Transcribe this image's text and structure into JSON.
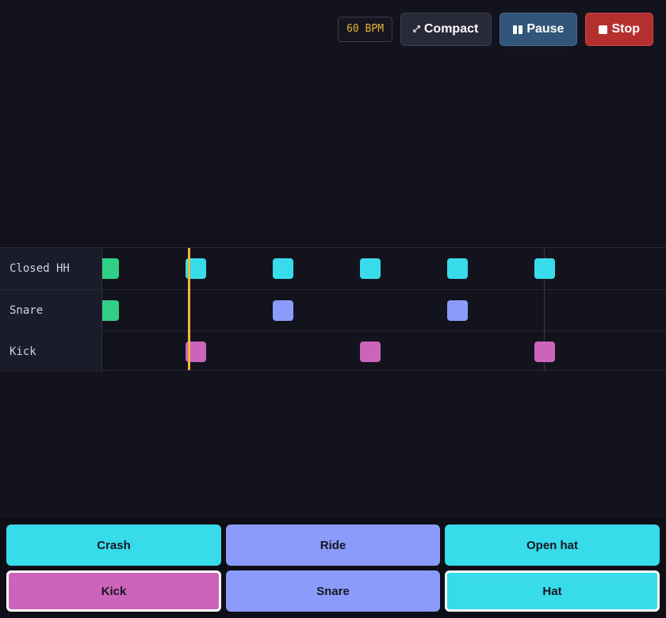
{
  "toolbar": {
    "bpm_label": "60 BPM",
    "compact_label": "Compact",
    "compact_icon": "⤢",
    "pause_label": "Pause",
    "stop_label": "Stop"
  },
  "lanes": [
    {
      "label": "Closed HH",
      "color": "#38dbe9",
      "notes": [
        0,
        1,
        2,
        3,
        4,
        5
      ],
      "first_note_color": "#2fcf85"
    },
    {
      "label": "Snare",
      "color": "#8a9bfb",
      "notes": [
        0,
        2,
        4
      ],
      "first_note_color": "#2fcf85"
    },
    {
      "label": "Kick",
      "color": "#cc64bb",
      "notes": [
        1,
        3,
        5
      ]
    }
  ],
  "pads": [
    {
      "label": "Crash",
      "color": "#38dbe9",
      "active": false
    },
    {
      "label": "Ride",
      "color": "#8a9bfb",
      "active": false
    },
    {
      "label": "Open hat",
      "color": "#38dbe9",
      "active": false
    },
    {
      "label": "Kick",
      "color": "#cc64bb",
      "active": true
    },
    {
      "label": "Snare",
      "color": "#8a9bfb",
      "active": false
    },
    {
      "label": "Hat",
      "color": "#38dbe9",
      "active": true
    }
  ],
  "colors": {
    "background": "#12131c",
    "playhead": "#f2b63a",
    "stop": "#b3302f",
    "pause": "#325679"
  }
}
